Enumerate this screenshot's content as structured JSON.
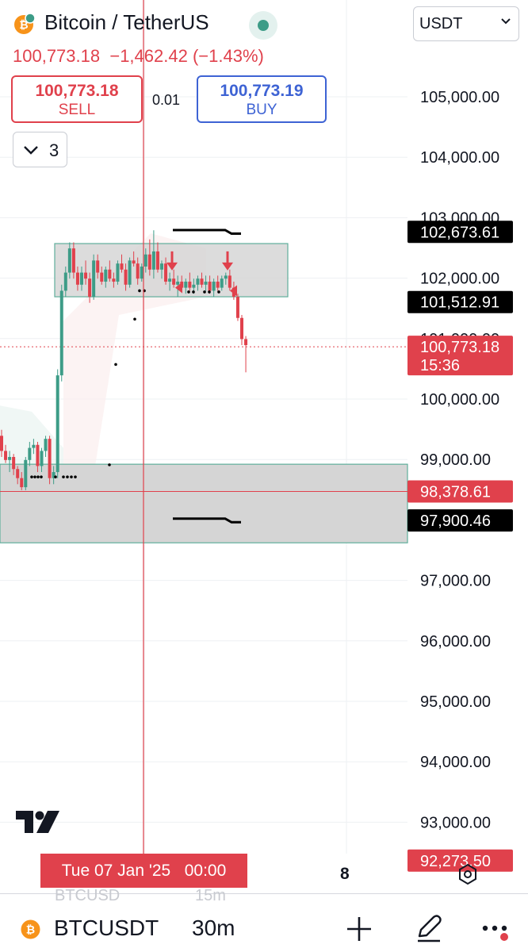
{
  "header": {
    "title": "Bitcoin / TetherUS",
    "last_price": "100,773.18",
    "change": "−1,462.42",
    "change_pct": "(−1.43%)",
    "currency": "USDT",
    "sell_price": "100,773.18",
    "sell_label": "SELL",
    "spread": "0.01",
    "buy_price": "100,773.19",
    "buy_label": "BUY",
    "indicators_count": "3"
  },
  "colors": {
    "up": "#3d9c87",
    "down": "#e0414c",
    "buy_accent": "#3e63d4",
    "zone_fill": "#d3d3d3",
    "zone_border": "#5fae9b"
  },
  "chart_data": {
    "type": "candlestick",
    "y_axis_ticks": [
      "105,000.00",
      "104,000.00",
      "103,000.00",
      "102,000.00",
      "101,000.00",
      "100,000.00",
      "99,000.00",
      "98,000.00",
      "97,000.00",
      "96,000.00",
      "95,000.00",
      "94,000.00",
      "93,000.00"
    ],
    "y_range": [
      92000,
      105800
    ],
    "price_labels": [
      {
        "text": "102,673.61",
        "value": 102673.61,
        "style": "black"
      },
      {
        "text": "101,512.91",
        "value": 101512.91,
        "style": "black"
      },
      {
        "text": "100,773.18",
        "sub": "15:36",
        "value": 100773.18,
        "style": "red"
      },
      {
        "text": "98,378.61",
        "value": 98378.61,
        "style": "red"
      },
      {
        "text": "97,900.46",
        "value": 97900.46,
        "style": "black"
      },
      {
        "text": "92,273.50",
        "value": 92273.5,
        "style": "red"
      }
    ],
    "upper_zone": {
      "top": 102480,
      "bottom": 101600
    },
    "lower_zone": {
      "top": 98830,
      "bottom": 97530
    },
    "candles": [
      [
        99300,
        99400,
        98950,
        99050
      ],
      [
        99050,
        99150,
        98850,
        98900
      ],
      [
        98900,
        99050,
        98700,
        98950
      ],
      [
        98950,
        99000,
        98650,
        98750
      ],
      [
        98750,
        98800,
        98500,
        98600
      ],
      [
        98600,
        98700,
        98400,
        98450
      ],
      [
        98450,
        98950,
        98400,
        98900
      ],
      [
        98900,
        99200,
        98800,
        99100
      ],
      [
        99100,
        99250,
        99000,
        99150
      ],
      [
        99150,
        99200,
        98700,
        98800
      ],
      [
        98800,
        99100,
        98700,
        99050
      ],
      [
        99050,
        99300,
        98950,
        99250
      ],
      [
        99250,
        99300,
        98500,
        98600
      ],
      [
        98600,
        98800,
        98500,
        98700
      ],
      [
        98700,
        100400,
        98600,
        100300
      ],
      [
        100300,
        101800,
        100200,
        101700
      ],
      [
        101700,
        102100,
        101600,
        102000
      ],
      [
        102000,
        102500,
        101900,
        102400
      ],
      [
        102400,
        102500,
        101900,
        102000
      ],
      [
        102000,
        102100,
        101700,
        101800
      ],
      [
        101800,
        102100,
        101700,
        102000
      ],
      [
        102000,
        102200,
        101800,
        101900
      ],
      [
        101900,
        102000,
        101500,
        101600
      ],
      [
        101600,
        102300,
        101550,
        102200
      ],
      [
        102200,
        102300,
        101900,
        102000
      ],
      [
        102000,
        102100,
        101800,
        101850
      ],
      [
        101850,
        102100,
        101750,
        102050
      ],
      [
        102050,
        102200,
        101850,
        101900
      ],
      [
        101900,
        102000,
        101750,
        101850
      ],
      [
        101850,
        102200,
        101800,
        102150
      ],
      [
        102150,
        102300,
        102000,
        102050
      ],
      [
        102050,
        102150,
        101700,
        101800
      ],
      [
        101800,
        102250,
        101750,
        102200
      ],
      [
        102200,
        102350,
        102100,
        102150
      ],
      [
        102150,
        102250,
        101800,
        101900
      ],
      [
        101900,
        102150,
        101850,
        102100
      ],
      [
        102100,
        102400,
        102000,
        102300
      ],
      [
        102300,
        102550,
        101950,
        102050
      ],
      [
        102050,
        102700,
        101900,
        102350
      ],
      [
        102350,
        102500,
        102000,
        102050
      ],
      [
        102050,
        102200,
        101900,
        102150
      ],
      [
        102150,
        102250,
        101800,
        101850
      ],
      [
        101850,
        102000,
        101700,
        101900
      ],
      [
        101900,
        102050,
        101750,
        101800
      ],
      [
        101800,
        101950,
        101600,
        101850
      ],
      [
        101850,
        101950,
        101700,
        101750
      ],
      [
        101750,
        101900,
        101650,
        101850
      ],
      [
        101850,
        102000,
        101700,
        101750
      ],
      [
        101750,
        101900,
        101650,
        101800
      ],
      [
        101800,
        101950,
        101700,
        101900
      ],
      [
        101900,
        102000,
        101750,
        101800
      ],
      [
        101800,
        101950,
        101700,
        101850
      ],
      [
        101850,
        101950,
        101650,
        101700
      ],
      [
        101700,
        101900,
        101600,
        101850
      ],
      [
        101850,
        101950,
        101700,
        101750
      ],
      [
        101750,
        101950,
        101700,
        101900
      ],
      [
        101900,
        102000,
        101800,
        101950
      ],
      [
        101950,
        102050,
        101700,
        101750
      ],
      [
        101750,
        101850,
        101550,
        101600
      ],
      [
        101600,
        101650,
        101200,
        101250
      ],
      [
        101250,
        101300,
        100800,
        100900
      ],
      [
        100900,
        100950,
        100350,
        100800
      ]
    ]
  },
  "time_axis": {
    "crosshair_label": "Tue 07 Jan '25   00:00",
    "date_tick": "8"
  },
  "bottom_bar": {
    "ghost_symbol": "BTCUSD",
    "ghost_interval": "15m",
    "symbol": "BTCUSDT",
    "interval": "30m"
  }
}
